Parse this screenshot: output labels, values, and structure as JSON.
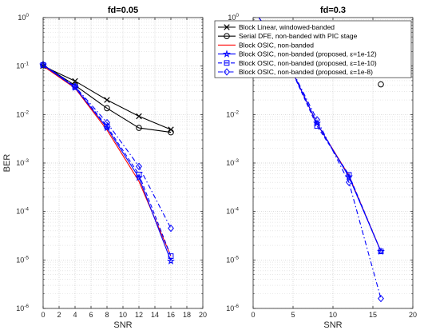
{
  "chart_data": [
    {
      "type": "line",
      "title": "fd=0.05",
      "xlabel": "SNR",
      "ylabel": "BER",
      "xlim": [
        0,
        20
      ],
      "ylim": [
        1e-06,
        1
      ],
      "yscale": "log",
      "xticks": [
        "0",
        "2",
        "4",
        "6",
        "8",
        "10",
        "12",
        "14",
        "16",
        "18",
        "20"
      ],
      "yticks": [
        {
          "base": "10",
          "exp": "-6"
        },
        {
          "base": "10",
          "exp": "-5"
        },
        {
          "base": "10",
          "exp": "-4"
        },
        {
          "base": "10",
          "exp": "-3"
        },
        {
          "base": "10",
          "exp": "-2"
        },
        {
          "base": "10",
          "exp": "-1"
        },
        {
          "base": "10",
          "exp": "0"
        }
      ],
      "grid": "on",
      "series": [
        {
          "name": "Block Linear, windowed-banded",
          "color": "#000000",
          "style": "solid",
          "marker": "x",
          "x": [
            0,
            4,
            8,
            12,
            16
          ],
          "y": [
            0.1,
            0.049,
            0.02,
            0.0092,
            0.0049
          ]
        },
        {
          "name": "Serial DFE, non-banded with PIC stage",
          "color": "#000000",
          "style": "solid",
          "marker": "circle",
          "x": [
            0,
            4,
            8,
            12,
            16
          ],
          "y": [
            0.105,
            0.04,
            0.0135,
            0.0053,
            0.0043
          ]
        },
        {
          "name": "Block OSIC, non-banded",
          "color": "#ff0000",
          "style": "solid",
          "marker": "none",
          "x": [
            0,
            4,
            8,
            12,
            16
          ],
          "y": [
            0.1,
            0.035,
            0.0048,
            0.00042,
            1.2e-05
          ]
        },
        {
          "name": "Block OSIC, non-banded (proposed, ε=1e-12)",
          "color": "#0000ff",
          "style": "solid",
          "marker": "star",
          "x": [
            0,
            4,
            8,
            12,
            16
          ],
          "y": [
            0.105,
            0.036,
            0.0053,
            0.0005,
            9.5e-06
          ]
        },
        {
          "name": "Block OSIC, non-banded (proposed, ε=1e-10)",
          "color": "#0000ff",
          "style": "dashed",
          "marker": "square",
          "x": [
            0,
            4,
            8,
            12,
            16
          ],
          "y": [
            0.105,
            0.037,
            0.0057,
            0.00058,
            1.2e-05
          ]
        },
        {
          "name": "Block OSIC, non-banded (proposed, ε=1e-8)",
          "color": "#0000ff",
          "style": "dashdot",
          "marker": "diamond",
          "x": [
            0,
            4,
            8,
            12,
            16
          ],
          "y": [
            0.108,
            0.038,
            0.0068,
            0.00085,
            4.5e-05
          ]
        }
      ]
    },
    {
      "type": "line",
      "title": "fd=0.3",
      "xlabel": "SNR",
      "ylabel": "",
      "xlim": [
        0,
        20
      ],
      "ylim": [
        1e-06,
        1
      ],
      "yscale": "log",
      "xticks": [
        "0",
        "5",
        "10",
        "15",
        "20"
      ],
      "yticks": [
        {
          "base": "10",
          "exp": "-6"
        },
        {
          "base": "10",
          "exp": "-5"
        },
        {
          "base": "10",
          "exp": "-4"
        },
        {
          "base": "10",
          "exp": "-3"
        },
        {
          "base": "10",
          "exp": "-2"
        },
        {
          "base": "10",
          "exp": "-1"
        },
        {
          "base": "10",
          "exp": "0"
        }
      ],
      "grid": "on",
      "legend": {
        "location": "top-right",
        "entries": [
          {
            "label": "Block Linear, windowed-banded",
            "color": "#000000",
            "style": "solid",
            "marker": "x"
          },
          {
            "label": "Serial DFE, non-banded with PIC stage",
            "color": "#000000",
            "style": "solid",
            "marker": "circle"
          },
          {
            "label": "Block OSIC, non-banded",
            "color": "#ff0000",
            "style": "solid",
            "marker": "none"
          },
          {
            "label": "Block OSIC, non-banded (proposed, ε=1e-12)",
            "color": "#0000ff",
            "style": "solid",
            "marker": "star"
          },
          {
            "label": "Block OSIC, non-banded (proposed, ε=1e-10)",
            "color": "#0000ff",
            "style": "dashed",
            "marker": "square"
          },
          {
            "label": "Block OSIC, non-banded (proposed, ε=1e-8)",
            "color": "#0000ff",
            "style": "dashdot",
            "marker": "diamond"
          }
        ]
      },
      "series": [
        {
          "name": "Serial DFE, non-banded with PIC stage",
          "color": "#000000",
          "style": "solid",
          "marker": "circle",
          "x": [
            16
          ],
          "y": [
            0.042
          ]
        },
        {
          "name": "Block OSIC, non-banded",
          "color": "#ff0000",
          "style": "solid",
          "marker": "none",
          "x": [
            0,
            4,
            8,
            12,
            16
          ],
          "y": [
            1.5,
            0.16,
            0.0065,
            0.00055,
            1.5e-05
          ]
        },
        {
          "name": "Block OSIC, non-banded (proposed, ε=1e-12)",
          "color": "#0000ff",
          "style": "solid",
          "marker": "star",
          "x": [
            0,
            4,
            8,
            12,
            16
          ],
          "y": [
            1.5,
            0.16,
            0.0066,
            0.00052,
            1.5e-05
          ]
        },
        {
          "name": "Block OSIC, non-banded (proposed, ε=1e-10)",
          "color": "#0000ff",
          "style": "dashed",
          "marker": "square",
          "x": [
            0,
            4,
            8,
            12,
            16
          ],
          "y": [
            1.5,
            0.16,
            0.0058,
            0.00057,
            1.5e-05
          ]
        },
        {
          "name": "Block OSIC, non-banded (proposed, ε=1e-8)",
          "color": "#0000ff",
          "style": "dashdot",
          "marker": "diamond",
          "x": [
            0,
            4,
            8,
            12,
            16
          ],
          "y": [
            1.5,
            0.16,
            0.0078,
            0.0004,
            1.6e-06
          ]
        }
      ]
    }
  ]
}
